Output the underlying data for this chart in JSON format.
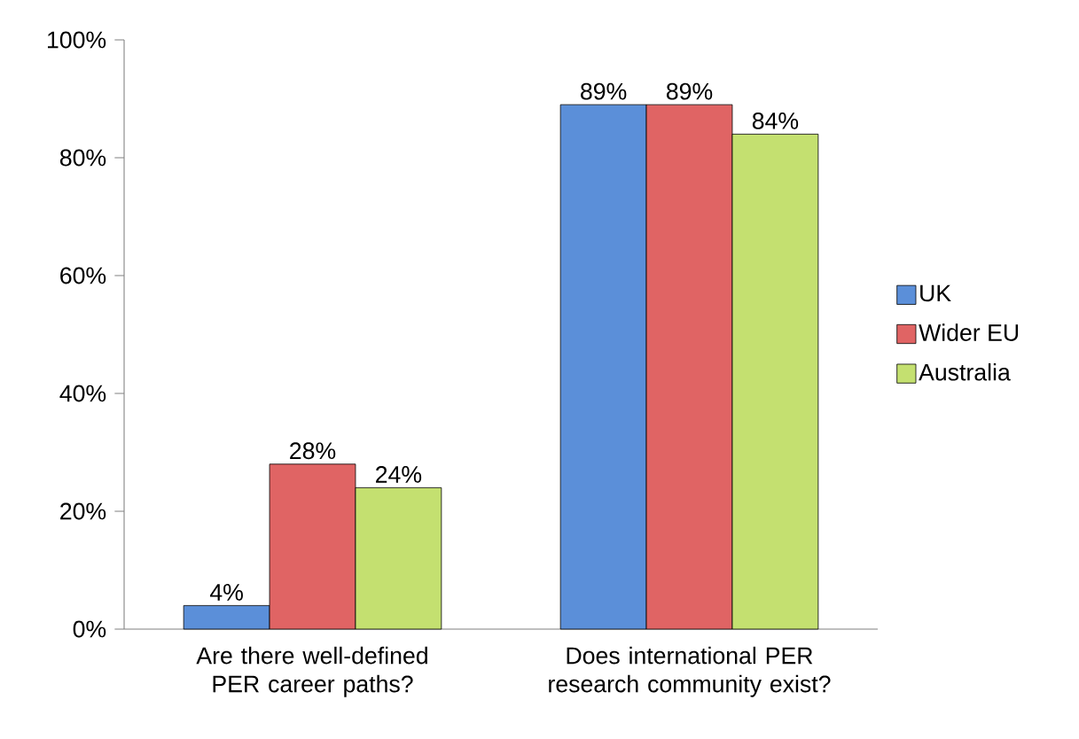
{
  "chart_data": {
    "type": "bar",
    "categories": [
      "Are there well-defined PER career paths?",
      "Does international PER research community exist?"
    ],
    "series": [
      {
        "name": "UK",
        "color": "#5b8fd9",
        "values": [
          4,
          89
        ],
        "value_labels": [
          "4%",
          "89%"
        ]
      },
      {
        "name": "Wider EU",
        "color": "#e06464",
        "values": [
          28,
          89
        ],
        "value_labels": [
          "28%",
          "89%"
        ]
      },
      {
        "name": "Australia",
        "color": "#c4e070",
        "values": [
          24,
          84
        ],
        "value_labels": [
          "24%",
          "84%"
        ]
      }
    ],
    "ylim": [
      0,
      100
    ],
    "yticks": [
      {
        "value": 0,
        "label": "0%"
      },
      {
        "value": 20,
        "label": "20%"
      },
      {
        "value": 40,
        "label": "40%"
      },
      {
        "value": 60,
        "label": "60%"
      },
      {
        "value": 80,
        "label": "80%"
      },
      {
        "value": 100,
        "label": "100%"
      }
    ],
    "legend": "right",
    "grid": false
  }
}
